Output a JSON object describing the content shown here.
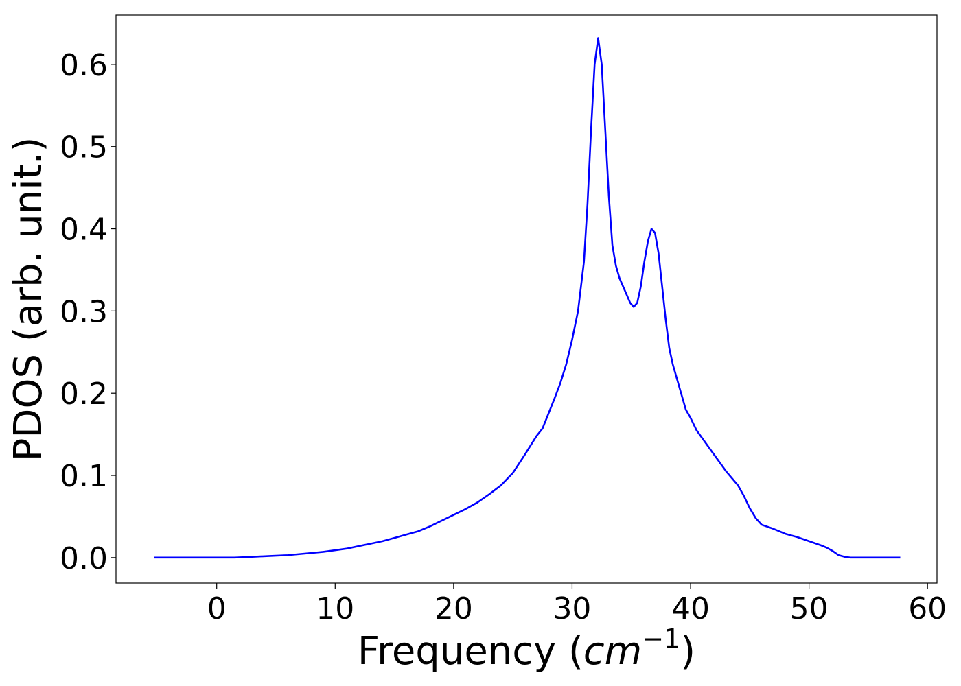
{
  "chart_data": {
    "type": "line",
    "title": "",
    "xlabel": {
      "prefix": "Frequency (",
      "math_base": "cm",
      "math_sup": "−1",
      "suffix": ")"
    },
    "ylabel": "PDOS (arb. unit.)",
    "xlim": [
      -8.5,
      60.8
    ],
    "ylim": [
      -0.031,
      0.66
    ],
    "xticks": [
      0,
      10,
      20,
      30,
      40,
      50,
      60
    ],
    "xtick_labels": [
      "0",
      "10",
      "20",
      "30",
      "40",
      "50",
      "60"
    ],
    "yticks": [
      0.0,
      0.1,
      0.2,
      0.3,
      0.4,
      0.5,
      0.6
    ],
    "ytick_labels": [
      "0.0",
      "0.1",
      "0.2",
      "0.3",
      "0.4",
      "0.5",
      "0.6"
    ],
    "grid": false,
    "legend": "none",
    "series": [
      {
        "color": "#0000ff",
        "x": [
          -5.3,
          0,
          1.5,
          3,
          4.5,
          6,
          7.5,
          9,
          10,
          11,
          12,
          13,
          14,
          15,
          16,
          17,
          18,
          19,
          20,
          21,
          22,
          23,
          24,
          25,
          26,
          27,
          27.5,
          28,
          28.5,
          29,
          29.5,
          30,
          30.5,
          31,
          31.3,
          31.6,
          31.9,
          32.2,
          32.5,
          32.8,
          33.1,
          33.4,
          33.7,
          34,
          34.3,
          34.6,
          34.9,
          35.2,
          35.5,
          35.8,
          36.1,
          36.4,
          36.7,
          37,
          37.3,
          37.6,
          37.9,
          38.2,
          38.5,
          38.8,
          39.2,
          39.6,
          40,
          40.5,
          41,
          41.5,
          42,
          43,
          44,
          44.5,
          45,
          45.5,
          46,
          47,
          48,
          49,
          50,
          51,
          51.5,
          52,
          52.5,
          53,
          53.5,
          55,
          57.7
        ],
        "y": [
          0.0,
          0.0,
          0.0,
          0.001,
          0.002,
          0.003,
          0.005,
          0.007,
          0.009,
          0.011,
          0.014,
          0.017,
          0.02,
          0.024,
          0.028,
          0.032,
          0.038,
          0.045,
          0.052,
          0.059,
          0.067,
          0.077,
          0.088,
          0.103,
          0.125,
          0.148,
          0.157,
          0.175,
          0.193,
          0.212,
          0.235,
          0.265,
          0.3,
          0.36,
          0.43,
          0.52,
          0.6,
          0.632,
          0.6,
          0.52,
          0.44,
          0.38,
          0.355,
          0.34,
          0.33,
          0.32,
          0.31,
          0.305,
          0.31,
          0.33,
          0.36,
          0.385,
          0.4,
          0.395,
          0.37,
          0.33,
          0.29,
          0.255,
          0.235,
          0.22,
          0.2,
          0.18,
          0.17,
          0.155,
          0.145,
          0.135,
          0.125,
          0.105,
          0.088,
          0.075,
          0.06,
          0.048,
          0.04,
          0.035,
          0.029,
          0.025,
          0.02,
          0.015,
          0.012,
          0.008,
          0.003,
          0.001,
          0.0,
          0.0,
          0.0
        ]
      }
    ]
  }
}
